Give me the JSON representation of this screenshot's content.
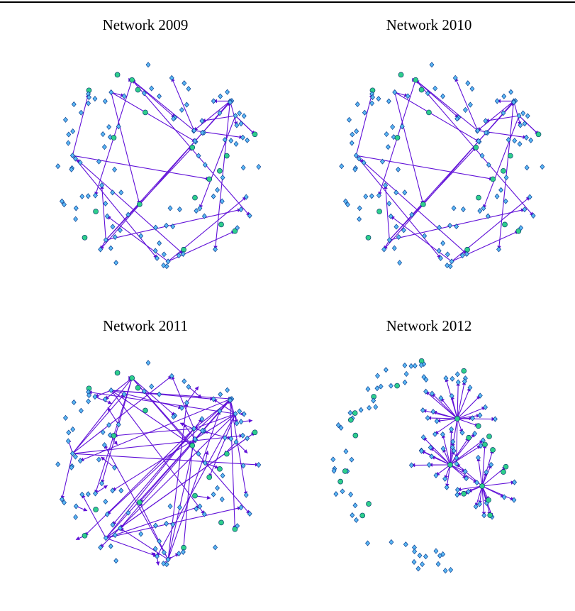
{
  "panels": [
    {
      "title": "Network 2009"
    },
    {
      "title": "Network 2010"
    },
    {
      "title": "Network 2011"
    },
    {
      "title": "Network 2012"
    }
  ]
}
